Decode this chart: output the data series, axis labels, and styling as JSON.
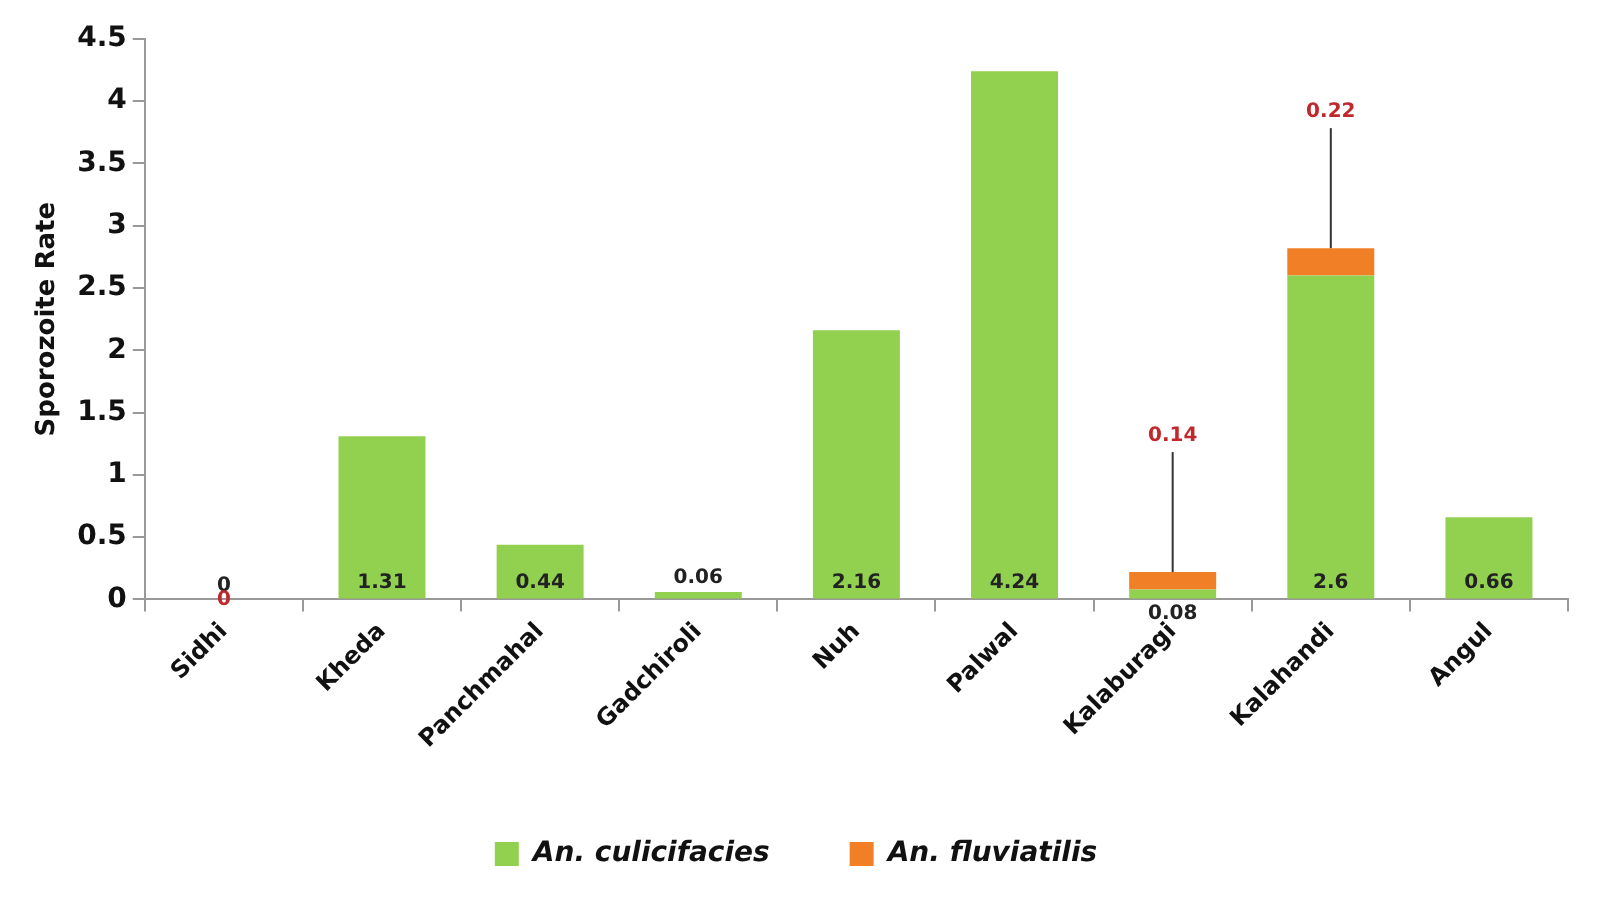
{
  "chart_data": {
    "type": "bar",
    "stacked": true,
    "ylabel": "Sporozoite Rate",
    "categories": [
      "Sidhi",
      "Kheda",
      "Panchmahal",
      "Gadchiroli",
      "Nuh",
      "Palwal",
      "Kalaburagi",
      "Kalahandi",
      "Angul"
    ],
    "series": [
      {
        "name": "An. culicifacies",
        "color": "#92d050",
        "values": [
          0,
          1.31,
          0.44,
          0.06,
          2.16,
          4.24,
          0.08,
          2.6,
          0.66
        ],
        "value_labels": [
          "0",
          "1.31",
          "0.44",
          "0.06",
          "2.16",
          "4.24",
          "0.08",
          "2.6",
          "0.66"
        ]
      },
      {
        "name": "An. fluviatilis",
        "color": "#f07f26",
        "values": [
          0,
          null,
          null,
          null,
          null,
          null,
          0.14,
          0.22,
          null
        ],
        "value_labels": [
          "0",
          null,
          null,
          null,
          null,
          null,
          "0.14",
          "0.22",
          null
        ]
      }
    ],
    "ylim": [
      0,
      4.5
    ],
    "yticks": [
      0,
      0.5,
      1,
      1.5,
      2,
      2.5,
      3,
      3.5,
      4,
      4.5
    ],
    "grid": false,
    "legend": "bottom"
  }
}
